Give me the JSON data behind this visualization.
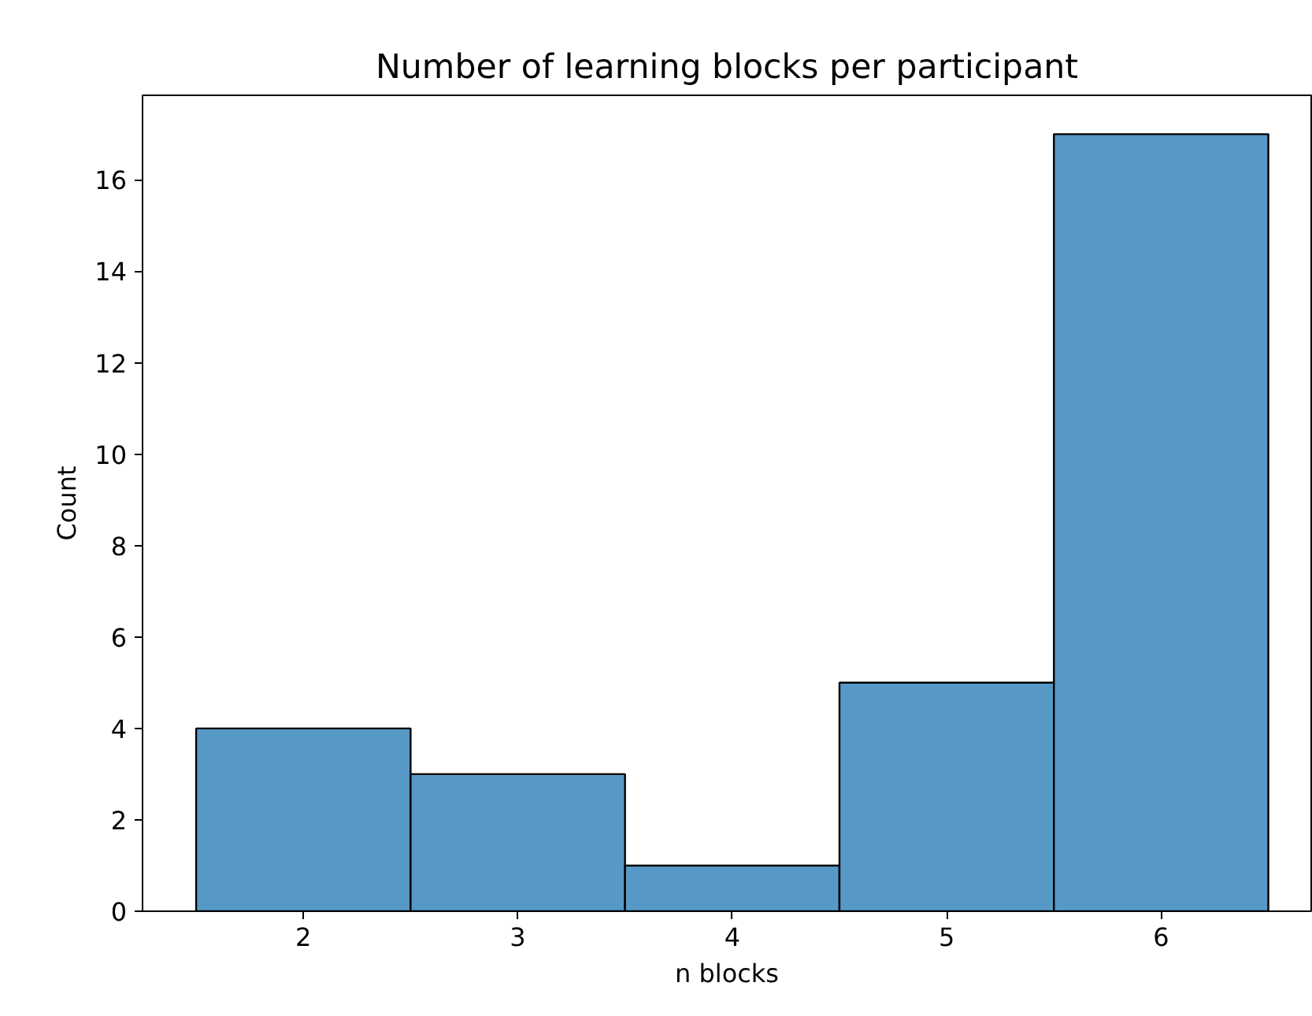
{
  "chart_data": {
    "type": "histogram",
    "title": "Number of learning blocks per participant",
    "xlabel": "n blocks",
    "ylabel": "Count",
    "bins": [
      1.5,
      2.5,
      3.5,
      4.5,
      5.5,
      6.5
    ],
    "values": [
      4,
      3,
      1,
      5,
      17
    ],
    "color": "#5799c6",
    "xlim": [
      1.25,
      6.7
    ],
    "ylim": [
      0,
      17.85
    ],
    "xticks": [
      2,
      3,
      4,
      5,
      6
    ],
    "yticks": [
      0,
      2,
      4,
      6,
      8,
      10,
      12,
      14,
      16
    ],
    "grid": false
  }
}
